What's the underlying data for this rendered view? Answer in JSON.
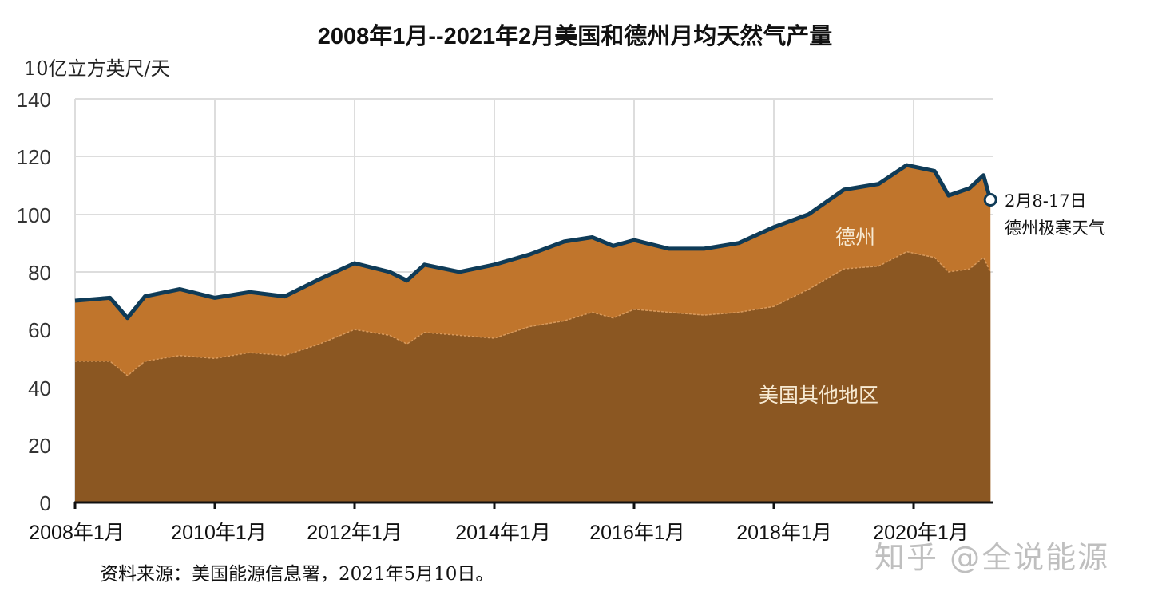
{
  "title": "2008年1月--2021年2月美国和德州月均天然气产量",
  "unit_label": "10亿立方英尺/天",
  "y_ticks": [
    "140",
    "120",
    "100",
    "80",
    "60",
    "40",
    "20",
    "0"
  ],
  "x_ticks": [
    "2008年1月",
    "2010年1月",
    "2012年1月",
    "2014年1月",
    "2016年1月",
    "2018年1月",
    "2020年1月"
  ],
  "labels": {
    "texas": "德州",
    "rest_of_us": "美国其他地区"
  },
  "annotation": {
    "line1": "2月8-17日",
    "line2": "德州极寒天气"
  },
  "source": "资料来源：美国能源信息署，2021年5月10日。",
  "watermark": "知乎 @全说能源",
  "colors": {
    "rest_of_us": "#8b5722",
    "texas": "#c0752c",
    "total_line": "#0f3b57",
    "grid": "#dddddd",
    "marker_fill": "#ffffff"
  },
  "chart_data": {
    "type": "area",
    "stacked": true,
    "title": "2008年1月--2021年2月美国和德州月均天然气产量",
    "xlabel": "",
    "ylabel": "10亿立方英尺/天",
    "ylim": [
      0,
      140
    ],
    "yticks": [
      0,
      20,
      40,
      60,
      80,
      100,
      120,
      140
    ],
    "xtick_labels": [
      "2008年1月",
      "2010年1月",
      "2012年1月",
      "2014年1月",
      "2016年1月",
      "2018年1月",
      "2020年1月"
    ],
    "grid": true,
    "legend": "inline labels (德州, 美国其他地区)",
    "x": [
      2008.0,
      2008.5,
      2008.75,
      2009.0,
      2009.5,
      2010.0,
      2010.5,
      2011.0,
      2011.5,
      2012.0,
      2012.5,
      2012.75,
      2013.0,
      2013.5,
      2014.0,
      2014.5,
      2015.0,
      2015.4,
      2015.7,
      2016.0,
      2016.5,
      2017.0,
      2017.5,
      2018.0,
      2018.5,
      2019.0,
      2019.5,
      2019.9,
      2020.3,
      2020.5,
      2020.8,
      2021.0,
      2021.1
    ],
    "series": [
      {
        "name": "美国其他地区",
        "values": [
          49,
          49,
          44,
          49,
          51,
          50,
          52,
          51,
          55,
          60,
          58,
          55,
          59,
          58,
          57,
          61,
          63,
          66,
          64,
          67,
          66,
          65,
          66,
          68,
          74,
          81,
          82,
          87,
          85,
          80,
          81,
          85,
          80
        ]
      },
      {
        "name": "德州",
        "values": [
          21,
          22,
          20,
          22.5,
          23,
          21,
          21,
          20.5,
          22.5,
          23,
          22,
          22,
          23.5,
          22,
          25.5,
          25,
          27.5,
          26,
          25,
          24,
          22,
          23,
          24,
          27.5,
          26,
          27.5,
          28.5,
          30,
          30,
          26.5,
          28,
          28.5,
          25
        ]
      },
      {
        "name": "美国合计 (total line)",
        "values": [
          70,
          71,
          64,
          71.5,
          74,
          71,
          73,
          71.5,
          77.5,
          83,
          80,
          77,
          82.5,
          80,
          82.5,
          86,
          90.5,
          92,
          89,
          91,
          88,
          88,
          90,
          95.5,
          100,
          108.5,
          110.5,
          117,
          115,
          106.5,
          109,
          113.5,
          105
        ]
      }
    ],
    "annotations": [
      {
        "x": 2021.1,
        "y": 105,
        "text": "2月8-17日 德州极寒天气",
        "marker": "hollow circle"
      }
    ]
  }
}
